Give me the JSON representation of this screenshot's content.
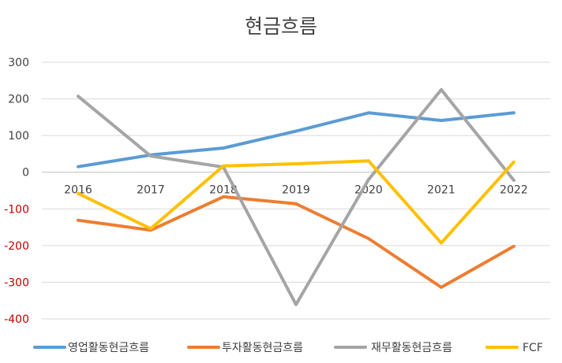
{
  "chart_data": {
    "type": "line",
    "title": "현금흐름",
    "xlabel": "",
    "ylabel": "",
    "categories": [
      "2016",
      "2017",
      "2018",
      "2019",
      "2020",
      "2021",
      "2022"
    ],
    "ylim": [
      -400,
      300
    ],
    "yticks": [
      300,
      200,
      100,
      0,
      -100,
      -200,
      -300,
      -400
    ],
    "ytick_labels": [
      "300",
      "200",
      "100",
      "0",
      "-100",
      "-200",
      "-300",
      "-400"
    ],
    "grid": true,
    "legend_position": "bottom",
    "series": [
      {
        "name": "영업활동현금흐름",
        "color": "#5b9bd5",
        "values": [
          15,
          47,
          66,
          112,
          162,
          141,
          162
        ]
      },
      {
        "name": "투자활동현금흐름",
        "color": "#ed7d31",
        "values": [
          -131,
          -158,
          -67,
          -86,
          -181,
          -314,
          -202
        ]
      },
      {
        "name": "재무활동현금흐름",
        "color": "#a5a5a5",
        "values": [
          207,
          44,
          14,
          -361,
          -20,
          225,
          -22
        ]
      },
      {
        "name": "FCF",
        "color": "#ffc000",
        "values": [
          -58,
          -154,
          17,
          23,
          31,
          -193,
          28
        ]
      }
    ]
  }
}
